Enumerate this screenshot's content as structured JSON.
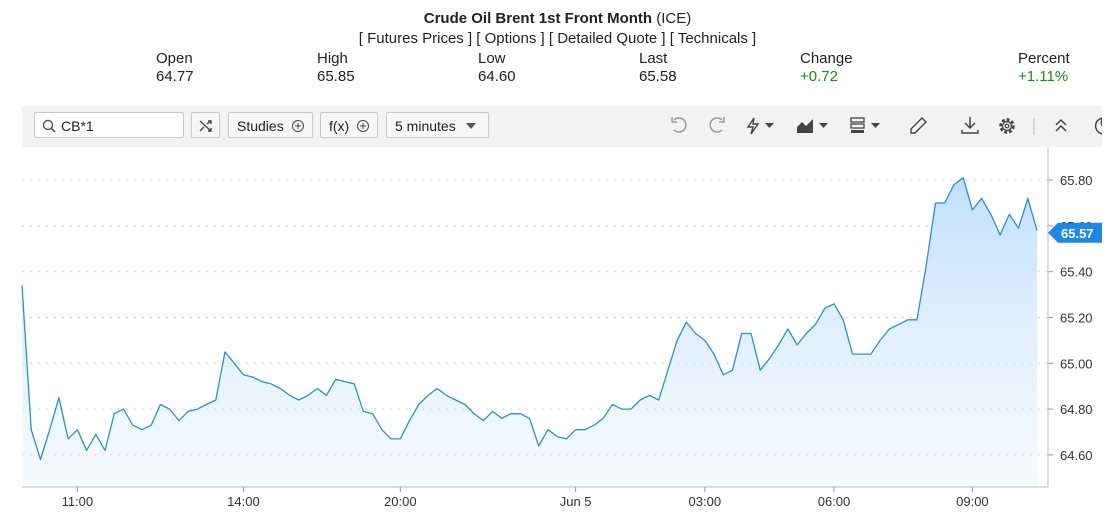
{
  "header": {
    "title": "Crude Oil Brent 1st Front Month",
    "exchange": "(ICE)",
    "links": [
      "Futures Prices",
      "Options",
      "Detailed Quote",
      "Technicals"
    ]
  },
  "quote": [
    {
      "label": "Open",
      "value": "64.77"
    },
    {
      "label": "High",
      "value": "65.85"
    },
    {
      "label": "Low",
      "value": "64.60"
    },
    {
      "label": "Last",
      "value": "65.58"
    },
    {
      "label": "Change",
      "value": "+0.72"
    },
    {
      "label": "Percent",
      "value": "+1.11%"
    }
  ],
  "toolbar": {
    "symbol": "CB*1",
    "studies": "Studies",
    "fx": "f(x)",
    "interval": "5 minutes"
  },
  "chart_data": {
    "type": "area",
    "color": "#2b8fd6",
    "values": [
      65.34,
      64.71,
      64.58,
      64.71,
      64.85,
      64.67,
      64.71,
      64.62,
      64.69,
      64.62,
      64.78,
      64.8,
      64.73,
      64.71,
      64.73,
      64.82,
      64.8,
      64.75,
      64.79,
      64.8,
      64.82,
      64.84,
      65.05,
      65.0,
      64.95,
      64.94,
      64.92,
      64.91,
      64.89,
      64.86,
      64.84,
      64.86,
      64.89,
      64.86,
      64.93,
      64.92,
      64.91,
      64.79,
      64.78,
      64.71,
      64.67,
      64.67,
      64.75,
      64.82,
      64.86,
      64.89,
      64.86,
      64.84,
      64.82,
      64.78,
      64.75,
      64.79,
      64.76,
      64.78,
      64.78,
      64.76,
      64.64,
      64.71,
      64.68,
      64.67,
      64.71,
      64.71,
      64.73,
      64.76,
      64.82,
      64.8,
      64.8,
      64.84,
      64.86,
      64.84,
      64.97,
      65.1,
      65.18,
      65.13,
      65.1,
      65.04,
      64.95,
      64.97,
      65.13,
      65.13,
      64.97,
      65.02,
      65.08,
      65.15,
      65.08,
      65.13,
      65.17,
      65.24,
      65.26,
      65.19,
      65.04,
      65.04,
      65.04,
      65.1,
      65.15,
      65.17,
      65.19,
      65.19,
      65.43,
      65.7,
      65.7,
      65.78,
      65.81,
      65.67,
      65.72,
      65.65,
      65.56,
      65.65,
      65.59,
      65.72,
      65.58
    ],
    "xlim": [
      0,
      110
    ],
    "xticks": [
      {
        "value": 6,
        "label": "11:00"
      },
      {
        "value": 24,
        "label": "14:00"
      },
      {
        "value": 41,
        "label": "20:00"
      },
      {
        "value": 60,
        "label": "Jun 5"
      },
      {
        "value": 74,
        "label": "03:00"
      },
      {
        "value": 88,
        "label": "06:00"
      },
      {
        "value": 103,
        "label": "09:00"
      }
    ],
    "ylim": [
      64.46,
      65.94
    ],
    "yticks": [
      {
        "value": 64.6,
        "label": "64.60"
      },
      {
        "value": 64.8,
        "label": "64.80"
      },
      {
        "value": 65.0,
        "label": "65.00"
      },
      {
        "value": 65.2,
        "label": "65.20"
      },
      {
        "value": 65.4,
        "label": "65.40"
      },
      {
        "value": 65.6,
        "label": "65.60"
      },
      {
        "value": 65.8,
        "label": "65.80"
      }
    ],
    "grid": true,
    "last_price": 65.57
  }
}
